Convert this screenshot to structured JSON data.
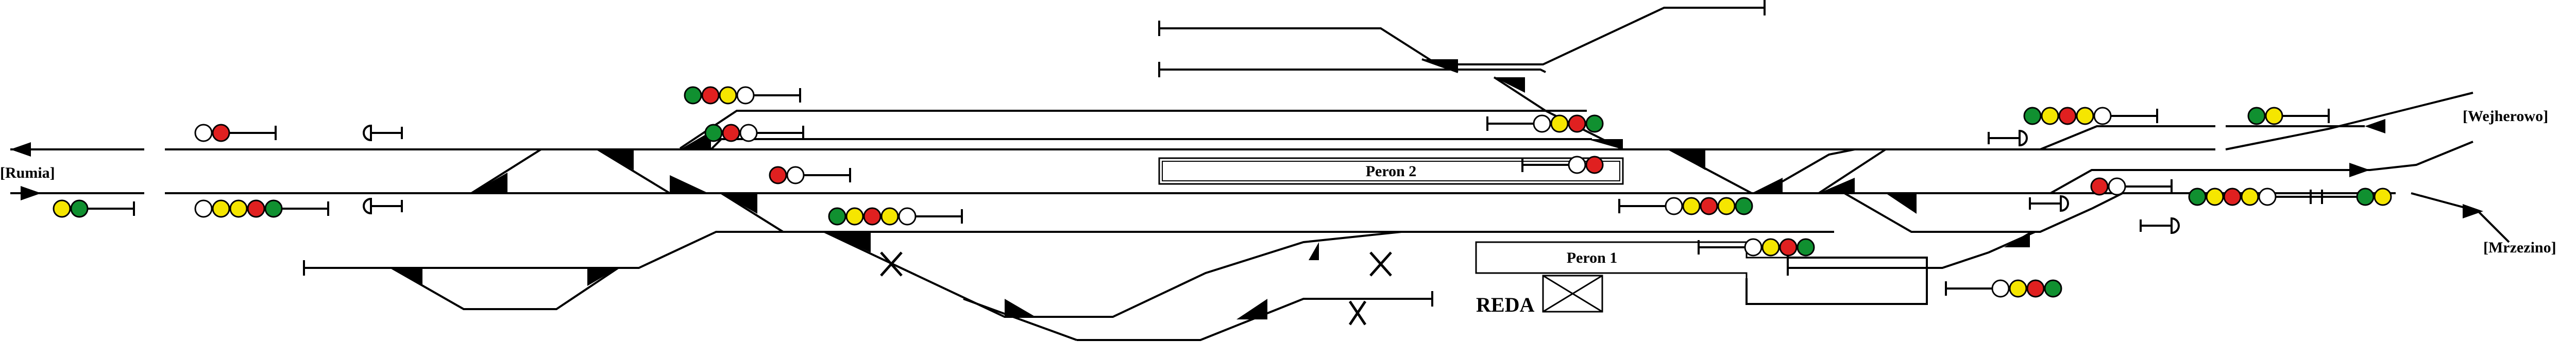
{
  "labels": {
    "rumia": "[Rumia]",
    "wejherowo": "[Wejherowo]",
    "mrzezino": "[Mrzezino]",
    "peron2": "Peron 2",
    "peron1": "Peron 1",
    "station": "REDA"
  },
  "colors": {
    "line": "#000000",
    "red": "#e02020",
    "yellow": "#f5e600",
    "green": "#109030",
    "white": "#ffffff"
  },
  "signals": [
    {
      "id": "sig-rumia-top",
      "lamps": [
        "white",
        "red"
      ]
    },
    {
      "id": "sig-rumia-bottom",
      "lamps": [
        "yellow",
        "green"
      ]
    },
    {
      "id": "sig-west-main-bottom",
      "lamps": [
        "white",
        "yellow",
        "yellow",
        "red",
        "green"
      ]
    },
    {
      "id": "sig-north-upper",
      "lamps": [
        "green",
        "red",
        "yellow",
        "white"
      ]
    },
    {
      "id": "sig-north-lower",
      "lamps": [
        "green",
        "red",
        "white"
      ]
    },
    {
      "id": "sig-center-main",
      "lamps": [
        "red",
        "white"
      ]
    },
    {
      "id": "sig-center-lower",
      "lamps": [
        "green",
        "yellow",
        "red",
        "yellow",
        "white"
      ]
    },
    {
      "id": "sig-east-north-upper",
      "lamps": [
        "white",
        "yellow",
        "red",
        "green"
      ]
    },
    {
      "id": "sig-east-peron2",
      "lamps": [
        "white",
        "red"
      ]
    },
    {
      "id": "sig-east-main-lower",
      "lamps": [
        "white",
        "yellow",
        "red",
        "yellow",
        "green"
      ]
    },
    {
      "id": "sig-east-peron1",
      "lamps": [
        "white",
        "yellow",
        "red",
        "green"
      ]
    },
    {
      "id": "sig-east-bottom",
      "lamps": [
        "white",
        "yellow",
        "red",
        "green"
      ]
    },
    {
      "id": "sig-far-east-top",
      "lamps": [
        "green",
        "yellow",
        "red",
        "yellow",
        "white"
      ]
    },
    {
      "id": "sig-far-east-mid",
      "lamps": [
        "red",
        "white"
      ]
    },
    {
      "id": "sig-far-east-low",
      "lamps": [
        "green",
        "yellow",
        "red",
        "yellow",
        "white"
      ]
    },
    {
      "id": "sig-wejherowo",
      "lamps": [
        "green",
        "yellow"
      ]
    },
    {
      "id": "sig-mrzezino",
      "lamps": [
        "green",
        "yellow"
      ]
    }
  ]
}
